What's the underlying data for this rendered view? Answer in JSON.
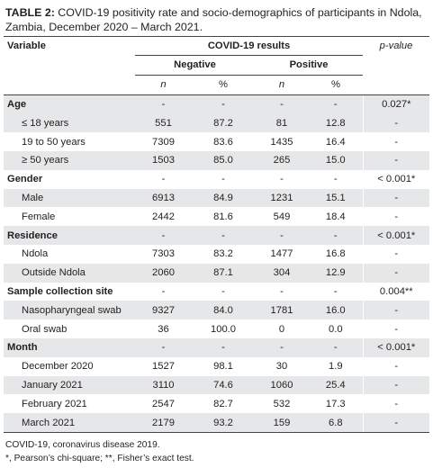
{
  "caption": {
    "label": "TABLE 2:",
    "text": " COVID-19 positivity rate and socio-demographics of participants in Ndola, Zambia, December 2020 – March 2021."
  },
  "header": {
    "variable": "Variable",
    "results": "COVID-19 results",
    "pvalue": "p-value",
    "negative": "Negative",
    "positive": "Positive",
    "n": "n",
    "pct": "%"
  },
  "rows": [
    {
      "label": "Age",
      "category": true,
      "n1": "-",
      "p1": "-",
      "n2": "-",
      "p2": "-",
      "pv": "0.027*"
    },
    {
      "label": "≤ 18 years",
      "category": false,
      "n1": "551",
      "p1": "87.2",
      "n2": "81",
      "p2": "12.8",
      "pv": "-"
    },
    {
      "label": "19 to 50 years",
      "category": false,
      "n1": "7309",
      "p1": "83.6",
      "n2": "1435",
      "p2": "16.4",
      "pv": "-"
    },
    {
      "label": "≥ 50 years",
      "category": false,
      "n1": "1503",
      "p1": "85.0",
      "n2": "265",
      "p2": "15.0",
      "pv": "-"
    },
    {
      "label": "Gender",
      "category": true,
      "n1": "-",
      "p1": "-",
      "n2": "-",
      "p2": "-",
      "pv": "< 0.001*"
    },
    {
      "label": "Male",
      "category": false,
      "n1": "6913",
      "p1": "84.9",
      "n2": "1231",
      "p2": "15.1",
      "pv": "-"
    },
    {
      "label": "Female",
      "category": false,
      "n1": "2442",
      "p1": "81.6",
      "n2": "549",
      "p2": "18.4",
      "pv": "-"
    },
    {
      "label": "Residence",
      "category": true,
      "n1": "-",
      "p1": "-",
      "n2": "-",
      "p2": "-",
      "pv": "< 0.001*"
    },
    {
      "label": "Ndola",
      "category": false,
      "n1": "7303",
      "p1": "83.2",
      "n2": "1477",
      "p2": "16.8",
      "pv": "-"
    },
    {
      "label": "Outside Ndola",
      "category": false,
      "n1": "2060",
      "p1": "87.1",
      "n2": "304",
      "p2": "12.9",
      "pv": "-"
    },
    {
      "label": "Sample collection site",
      "category": true,
      "n1": "-",
      "p1": "-",
      "n2": "-",
      "p2": "-",
      "pv": "0.004**"
    },
    {
      "label": "Nasopharyngeal swab",
      "category": false,
      "n1": "9327",
      "p1": "84.0",
      "n2": "1781",
      "p2": "16.0",
      "pv": "-"
    },
    {
      "label": "Oral swab",
      "category": false,
      "n1": "36",
      "p1": "100.0",
      "n2": "0",
      "p2": "0.0",
      "pv": "-"
    },
    {
      "label": "Month",
      "category": true,
      "n1": "-",
      "p1": "-",
      "n2": "-",
      "p2": "-",
      "pv": "< 0.001*"
    },
    {
      "label": "December 2020",
      "category": false,
      "n1": "1527",
      "p1": "98.1",
      "n2": "30",
      "p2": "1.9",
      "pv": "-"
    },
    {
      "label": "January 2021",
      "category": false,
      "n1": "3110",
      "p1": "74.6",
      "n2": "1060",
      "p2": "25.4",
      "pv": "-"
    },
    {
      "label": "February 2021",
      "category": false,
      "n1": "2547",
      "p1": "82.7",
      "n2": "532",
      "p2": "17.3",
      "pv": "-"
    },
    {
      "label": "March 2021",
      "category": false,
      "n1": "2179",
      "p1": "93.2",
      "n2": "159",
      "p2": "6.8",
      "pv": "-"
    }
  ],
  "row_shading": [
    "gray",
    "gray",
    "white",
    "gray",
    "white",
    "gray",
    "white",
    "gray",
    "white",
    "gray",
    "white",
    "gray",
    "white",
    "gray",
    "white",
    "gray",
    "white",
    "gray"
  ],
  "footer": {
    "line1": "COVID-19, coronavirus disease 2019.",
    "line2": "*, Pearson’s chi-square; **, Fisher’s exact test."
  }
}
